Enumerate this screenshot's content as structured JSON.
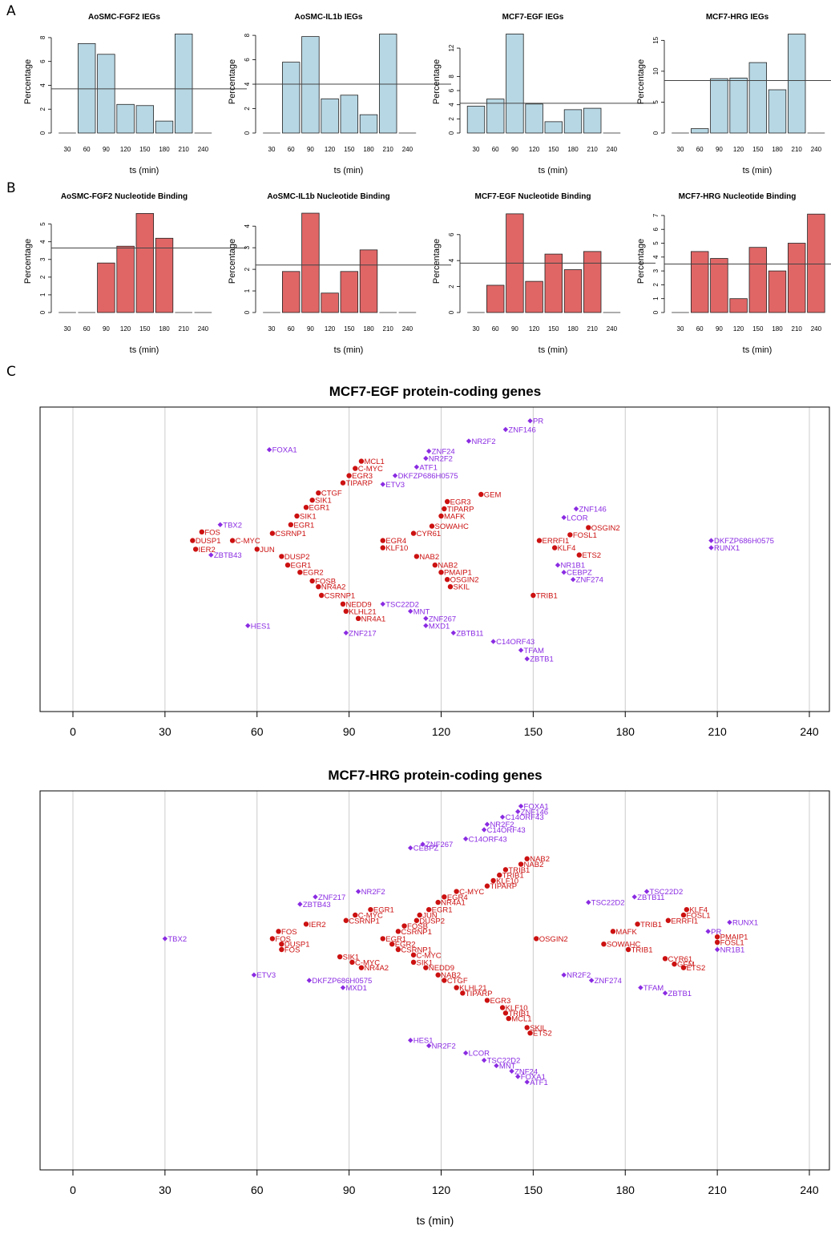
{
  "panel_labels": [
    "A",
    "B",
    "C"
  ],
  "colors": {
    "ieg_bar": "#b7d7e4",
    "nb_bar": "#e06666",
    "up_gene": "#cc1111",
    "down_gene": "#8a2be2",
    "grid": "#cccccc"
  },
  "chart_data": [
    {
      "type": "bar",
      "panel": "A",
      "title": "AoSMC-FGF2 IEGs",
      "ylabel": "Percentage",
      "xlabel": "ts (min)",
      "categories": [
        "30",
        "60",
        "90",
        "120",
        "150",
        "180",
        "210",
        "240"
      ],
      "values": [
        0,
        7.5,
        6.6,
        2.4,
        2.3,
        1.0,
        8.3,
        0
      ],
      "ylim": [
        0,
        8.6
      ],
      "yticks": [
        0,
        2,
        4,
        6,
        8
      ],
      "hline": 3.7,
      "color": "#b7d7e4"
    },
    {
      "type": "bar",
      "panel": "A",
      "title": "AoSMC-IL1b IEGs",
      "ylabel": "Percentage",
      "xlabel": "ts (min)",
      "categories": [
        "30",
        "60",
        "90",
        "120",
        "150",
        "180",
        "210",
        "240"
      ],
      "values": [
        0,
        5.8,
        7.9,
        2.8,
        3.1,
        1.5,
        8.1,
        0
      ],
      "ylim": [
        0,
        8.4
      ],
      "yticks": [
        0,
        2,
        4,
        6,
        8
      ],
      "hline": 4.0,
      "color": "#b7d7e4"
    },
    {
      "type": "bar",
      "panel": "A",
      "title": "MCF7-EGF IEGs",
      "ylabel": "Percentage",
      "xlabel": "ts (min)",
      "categories": [
        "30",
        "60",
        "90",
        "120",
        "150",
        "180",
        "210",
        "240"
      ],
      "values": [
        3.8,
        4.8,
        14.0,
        4.1,
        1.6,
        3.3,
        3.5,
        0
      ],
      "ylim": [
        0,
        14.5
      ],
      "yticks": [
        0,
        2,
        4,
        6,
        8,
        12
      ],
      "hline": 4.2,
      "color": "#b7d7e4"
    },
    {
      "type": "bar",
      "panel": "A",
      "title": "MCF7-HRG IEGs",
      "ylabel": "Percentage",
      "xlabel": "ts (min)",
      "categories": [
        "30",
        "60",
        "90",
        "120",
        "150",
        "180",
        "210",
        "240"
      ],
      "values": [
        0,
        0.7,
        8.8,
        8.9,
        11.4,
        7.0,
        16.0,
        0
      ],
      "ylim": [
        0,
        16.6
      ],
      "yticks": [
        0,
        5,
        10,
        15
      ],
      "hline": 8.5,
      "color": "#b7d7e4"
    },
    {
      "type": "bar",
      "panel": "B",
      "title": "AoSMC-FGF2 Nucleotide Binding",
      "ylabel": "Percentage",
      "xlabel": "ts (min)",
      "categories": [
        "30",
        "60",
        "90",
        "120",
        "150",
        "180",
        "210",
        "240"
      ],
      "values": [
        0,
        0,
        2.8,
        3.75,
        5.6,
        4.2,
        0,
        0
      ],
      "ylim": [
        0,
        5.8
      ],
      "yticks": [
        0,
        1,
        2,
        3,
        4,
        5
      ],
      "hline": 3.65,
      "color": "#e06666"
    },
    {
      "type": "bar",
      "panel": "B",
      "title": "AoSMC-IL1b Nucleotide Binding",
      "ylabel": "Percentage",
      "xlabel": "ts (min)",
      "categories": [
        "30",
        "60",
        "90",
        "120",
        "150",
        "180",
        "210",
        "240"
      ],
      "values": [
        0,
        1.9,
        4.6,
        0.9,
        1.9,
        2.9,
        0,
        0
      ],
      "ylim": [
        0,
        4.75
      ],
      "yticks": [
        0,
        1,
        2,
        3,
        4
      ],
      "hline": 2.2,
      "color": "#e06666"
    },
    {
      "type": "bar",
      "panel": "B",
      "title": "MCF7-EGF Nucleotide Binding",
      "ylabel": "Percentage",
      "xlabel": "ts (min)",
      "categories": [
        "30",
        "60",
        "90",
        "120",
        "150",
        "180",
        "210",
        "240"
      ],
      "values": [
        0,
        2.1,
        7.6,
        2.4,
        4.5,
        3.3,
        4.7,
        0
      ],
      "ylim": [
        0,
        7.9
      ],
      "yticks": [
        0,
        2,
        4,
        6
      ],
      "hline": 3.8,
      "color": "#e06666"
    },
    {
      "type": "bar",
      "panel": "B",
      "title": "MCF7-HRG Nucleotide Binding",
      "ylabel": "Percentage",
      "xlabel": "ts (min)",
      "categories": [
        "30",
        "60",
        "90",
        "120",
        "150",
        "180",
        "210",
        "240"
      ],
      "values": [
        0,
        4.4,
        3.9,
        1.0,
        4.7,
        3.0,
        5.0,
        7.1
      ],
      "ylim": [
        0,
        7.4
      ],
      "yticks": [
        0,
        1,
        2,
        3,
        4,
        5,
        6,
        7
      ],
      "hline": 3.5,
      "color": "#e06666"
    },
    {
      "type": "scatter",
      "panel": "C",
      "title": "MCF7-EGF protein-coding genes",
      "xlim": [
        -10,
        246
      ],
      "xticks": [
        0,
        30,
        60,
        90,
        120,
        150,
        180,
        210,
        240
      ],
      "ylim": [
        0,
        100
      ],
      "points": [
        [
          "PR",
          149,
          98,
          "d"
        ],
        [
          "ZNF146",
          141,
          95,
          "d"
        ],
        [
          "NR2F2",
          129,
          91,
          "d"
        ],
        [
          "FOXA1",
          64,
          88,
          "d"
        ],
        [
          "ZNF24",
          116,
          87.5,
          "d"
        ],
        [
          "NR2F2",
          115,
          85,
          "d"
        ],
        [
          "ATF1",
          112,
          82,
          "d"
        ],
        [
          "MCL1",
          94,
          84,
          "u"
        ],
        [
          "C-MYC",
          92,
          81.5,
          "u"
        ],
        [
          "EGR3",
          90,
          79,
          "u"
        ],
        [
          "DKFZP686H0575",
          105,
          79,
          "d"
        ],
        [
          "TIPARP",
          88,
          76.5,
          "u"
        ],
        [
          "ETV3",
          101,
          76,
          "d"
        ],
        [
          "CTGF",
          80,
          73,
          "u"
        ],
        [
          "GEM",
          133,
          72.5,
          "u"
        ],
        [
          "SIK1",
          78,
          70.5,
          "u"
        ],
        [
          "EGR3",
          122,
          70,
          "u"
        ],
        [
          "EGR1",
          76,
          68,
          "u"
        ],
        [
          "TIPARP",
          121,
          67.5,
          "u"
        ],
        [
          "ZNF146",
          164,
          67.5,
          "d"
        ],
        [
          "SIK1",
          73,
          65,
          "u"
        ],
        [
          "MAFK",
          120,
          65,
          "u"
        ],
        [
          "LCOR",
          160,
          64.5,
          "d"
        ],
        [
          "EGR1",
          71,
          62,
          "u"
        ],
        [
          "SOWAHC",
          117,
          61.5,
          "u"
        ],
        [
          "OSGIN2",
          168,
          61,
          "u"
        ],
        [
          "TBX2",
          48,
          62,
          "d"
        ],
        [
          "FOS",
          42,
          59.5,
          "u"
        ],
        [
          "CSRNP1",
          65,
          59,
          "u"
        ],
        [
          "CYR61",
          111,
          59,
          "u"
        ],
        [
          "FOSL1",
          162,
          58.5,
          "u"
        ],
        [
          "DUSP1",
          39,
          56.5,
          "u"
        ],
        [
          "C-MYC",
          52,
          56.5,
          "u"
        ],
        [
          "EGR4",
          101,
          56.5,
          "u"
        ],
        [
          "ERRFI1",
          152,
          56.5,
          "u"
        ],
        [
          "DKFZP686H0575",
          208,
          56.5,
          "d"
        ],
        [
          "IER2",
          40,
          53.5,
          "u"
        ],
        [
          "JUN",
          60,
          53.5,
          "u"
        ],
        [
          "KLF10",
          101,
          54,
          "u"
        ],
        [
          "KLF4",
          157,
          54,
          "u"
        ],
        [
          "RUNX1",
          208,
          54,
          "d"
        ],
        [
          "ZBTB43",
          45,
          51.5,
          "d"
        ],
        [
          "DUSP2",
          68,
          51,
          "u"
        ],
        [
          "NAB2",
          112,
          51,
          "u"
        ],
        [
          "ETS2",
          165,
          51.5,
          "u"
        ],
        [
          "EGR1",
          70,
          48,
          "u"
        ],
        [
          "NAB2",
          118,
          48,
          "u"
        ],
        [
          "NR1B1",
          158,
          48,
          "d"
        ],
        [
          "EGR2",
          74,
          45.5,
          "u"
        ],
        [
          "PMAIP1",
          120,
          45.5,
          "u"
        ],
        [
          "CEBPZ",
          160,
          45.5,
          "d"
        ],
        [
          "FOSB",
          78,
          42.5,
          "u"
        ],
        [
          "OSGIN2",
          122,
          43,
          "u"
        ],
        [
          "ZNF274",
          163,
          43,
          "d"
        ],
        [
          "NR4A2",
          80,
          40.5,
          "u"
        ],
        [
          "SKIL",
          123,
          40.5,
          "u"
        ],
        [
          "CSRNP1",
          81,
          37.5,
          "u"
        ],
        [
          "TRIB1",
          150,
          37.5,
          "u"
        ],
        [
          "NEDD9",
          88,
          34.5,
          "u"
        ],
        [
          "TSC22D2",
          101,
          34.5,
          "d"
        ],
        [
          "KLHL21",
          89,
          32,
          "u"
        ],
        [
          "MNT",
          110,
          32,
          "d"
        ],
        [
          "NR4A1",
          93,
          29.5,
          "u"
        ],
        [
          "ZNF267",
          115,
          29.5,
          "d"
        ],
        [
          "HES1",
          57,
          27,
          "d"
        ],
        [
          "MXD1",
          115,
          27,
          "d"
        ],
        [
          "ZNF217",
          89,
          24.5,
          "d"
        ],
        [
          "ZBTB11",
          124,
          24.5,
          "d"
        ],
        [
          "C14ORF43",
          137,
          21.5,
          "d"
        ],
        [
          "TFAM",
          146,
          18.5,
          "d"
        ],
        [
          "ZBTB1",
          148,
          15.5,
          "d"
        ]
      ]
    },
    {
      "type": "scatter",
      "panel": "C",
      "title": "MCF7-HRG protein-coding genes",
      "xlabel": "ts (min)",
      "xlim": [
        -10,
        246
      ],
      "xticks": [
        0,
        30,
        60,
        90,
        120,
        150,
        180,
        210,
        240
      ],
      "ylim": [
        0,
        100
      ],
      "points": [
        [
          "FOXA1",
          146,
          98,
          "d"
        ],
        [
          "ZNF146",
          145,
          96.5,
          "d"
        ],
        [
          "C14ORF43",
          140,
          95,
          "d"
        ],
        [
          "NR2F2",
          135,
          93,
          "d"
        ],
        [
          "C14ORF43",
          134,
          91.5,
          "d"
        ],
        [
          "C14ORF43",
          128,
          89,
          "d"
        ],
        [
          "ZNF267",
          114,
          87.5,
          "d"
        ],
        [
          "CEBPZ",
          110,
          86.5,
          "d"
        ],
        [
          "NAB2",
          148,
          83.5,
          "u"
        ],
        [
          "NAB2",
          146,
          82,
          "u"
        ],
        [
          "TRIB1",
          141,
          80.5,
          "u"
        ],
        [
          "TRIB1",
          139,
          79,
          "u"
        ],
        [
          "KLF10",
          137,
          77.5,
          "u"
        ],
        [
          "TIPARP",
          135,
          76,
          "u"
        ],
        [
          "C-MYC",
          125,
          74.5,
          "u"
        ],
        [
          "EGR4",
          121,
          73,
          "u"
        ],
        [
          "NR4A1",
          119,
          71.5,
          "u"
        ],
        [
          "TSC22D2",
          187,
          74.5,
          "d"
        ],
        [
          "ZBTB11",
          183,
          73,
          "d"
        ],
        [
          "TSC22D2",
          168,
          71.5,
          "d"
        ],
        [
          "ZNF217",
          79,
          73,
          "d"
        ],
        [
          "NR2F2",
          93,
          74.5,
          "d"
        ],
        [
          "ZBTB43",
          74,
          71,
          "d"
        ],
        [
          "KLF4",
          200,
          69.5,
          "u"
        ],
        [
          "FOSL1",
          199,
          68,
          "u"
        ],
        [
          "ERRFI1",
          194,
          66.5,
          "u"
        ],
        [
          "EGR1",
          116,
          69.5,
          "u"
        ],
        [
          "EGR1",
          97,
          69.5,
          "u"
        ],
        [
          "C-MYC",
          92,
          68,
          "u"
        ],
        [
          "CSRNP1",
          89,
          66.5,
          "u"
        ],
        [
          "JUN",
          113,
          68,
          "u"
        ],
        [
          "DUSP2",
          112,
          66.5,
          "u"
        ],
        [
          "RUNX1",
          214,
          66,
          "d"
        ],
        [
          "TRIB1",
          184,
          65.5,
          "u"
        ],
        [
          "IER2",
          76,
          65.5,
          "u"
        ],
        [
          "FOSB",
          108,
          65,
          "u"
        ],
        [
          "CSRNP1",
          106,
          63.5,
          "u"
        ],
        [
          "FOS",
          67,
          63.5,
          "u"
        ],
        [
          "MAFK",
          176,
          63.5,
          "u"
        ],
        [
          "PR",
          207,
          63.5,
          "d"
        ],
        [
          "TBX2",
          30,
          61.5,
          "d"
        ],
        [
          "FOS",
          65,
          61.5,
          "u"
        ],
        [
          "EGR1",
          101,
          61.5,
          "u"
        ],
        [
          "OSGIN2",
          151,
          61.5,
          "u"
        ],
        [
          "PMAIP1",
          210,
          62,
          "u"
        ],
        [
          "EGR2",
          104,
          60,
          "u"
        ],
        [
          "DUSP1",
          68,
          60,
          "u"
        ],
        [
          "SOWAHC",
          173,
          60,
          "u"
        ],
        [
          "FOSL1",
          210,
          60.5,
          "u"
        ],
        [
          "TRIB1",
          181,
          58.5,
          "u"
        ],
        [
          "FOS",
          68,
          58.5,
          "u"
        ],
        [
          "CSRNP1",
          106,
          58.5,
          "u"
        ],
        [
          "NR1B1",
          210,
          58.5,
          "d"
        ],
        [
          "SIK1",
          87,
          56.5,
          "u"
        ],
        [
          "C-MYC",
          111,
          57,
          "u"
        ],
        [
          "CYR61",
          193,
          56,
          "u"
        ],
        [
          "C-MYC",
          91,
          55,
          "u"
        ],
        [
          "SIK1",
          111,
          55,
          "u"
        ],
        [
          "GEM",
          196,
          54.5,
          "u"
        ],
        [
          "NR4A2",
          94,
          53.5,
          "u"
        ],
        [
          "NEDD9",
          115,
          53.5,
          "u"
        ],
        [
          "ETS2",
          199,
          53.5,
          "u"
        ],
        [
          "ETV3",
          59,
          51.5,
          "d"
        ],
        [
          "NAB2",
          119,
          51.5,
          "u"
        ],
        [
          "NR2F2",
          160,
          51.5,
          "d"
        ],
        [
          "DKFZP686H0575",
          77,
          50,
          "d"
        ],
        [
          "CTGF",
          121,
          50,
          "u"
        ],
        [
          "ZNF274",
          169,
          50,
          "d"
        ],
        [
          "MXD1",
          88,
          48,
          "d"
        ],
        [
          "KLHL21",
          125,
          48,
          "u"
        ],
        [
          "TFAM",
          185,
          48,
          "d"
        ],
        [
          "TIPARP",
          127,
          46.5,
          "u"
        ],
        [
          "ZBTB1",
          193,
          46.5,
          "d"
        ],
        [
          "EGR3",
          135,
          44.5,
          "u"
        ],
        [
          "KLF10",
          140,
          42.5,
          "u"
        ],
        [
          "TRIB1",
          141,
          41,
          "u"
        ],
        [
          "MCL1",
          142,
          39.5,
          "u"
        ],
        [
          "SKIL",
          148,
          37,
          "u"
        ],
        [
          "ETS2",
          149,
          35.5,
          "u"
        ],
        [
          "HES1",
          110,
          33.5,
          "d"
        ],
        [
          "NR2F2",
          116,
          32,
          "d"
        ],
        [
          "LCOR",
          128,
          30,
          "d"
        ],
        [
          "TSC22D2",
          134,
          28,
          "d"
        ],
        [
          "MNT",
          138,
          26.5,
          "d"
        ],
        [
          "ZNF24",
          143,
          25,
          "d"
        ],
        [
          "FOXA1",
          145,
          23.5,
          "d"
        ],
        [
          "ATF1",
          148,
          22,
          "d"
        ]
      ]
    }
  ]
}
